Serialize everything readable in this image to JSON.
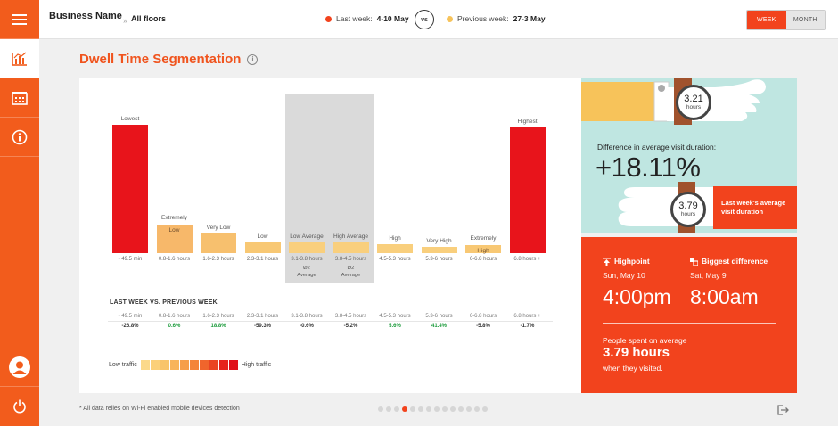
{
  "header": {
    "business_name": "Business Name",
    "chevron": "»",
    "location": "All floors",
    "last_week_label": "Last week:",
    "last_week_range": "4-10 May",
    "last_week_color": "#f2431d",
    "vs_label": "vs",
    "previous_week_label": "Previous week:",
    "previous_week_range": "27-3 May",
    "previous_week_color": "#f7c35a",
    "period_toggle": {
      "week": "WEEK",
      "month": "MONTH",
      "selected": "WEEK"
    }
  },
  "sidebar": {
    "items": [
      {
        "icon": "menu-icon"
      },
      {
        "icon": "chart-icon",
        "active": true
      },
      {
        "icon": "building-icon"
      },
      {
        "icon": "info-icon"
      },
      {
        "icon": "user-icon"
      },
      {
        "icon": "power-icon"
      }
    ]
  },
  "page": {
    "title": "Dwell Time Segmentation",
    "title_info_glyph": "i"
  },
  "chart_data": {
    "type": "bar",
    "categories": [
      "- 49.5 min",
      "0.8-1.6 hours",
      "1.6-2.3 hours",
      "2.3-3.1 hours",
      "3.1-3.8 hours",
      "3.8-4.5 hours",
      "4.5-5.3 hours",
      "5.3-6 hours",
      "6-6.8 hours",
      "6.8 hours +"
    ],
    "labels": [
      "Lowest",
      "Extremely Low",
      "Very Low",
      "Low",
      "Low Average",
      "High Average",
      "High",
      "Very High",
      "Extremely High",
      "Highest"
    ],
    "values": [
      100,
      22,
      15,
      8,
      8,
      8,
      7,
      5,
      6,
      98
    ],
    "colors": [
      "#e8141b",
      "#f7b86a",
      "#f7c06e",
      "#f8c874",
      "#f9cf7d",
      "#f9cf7d",
      "#f9cf7d",
      "#f9cf7d",
      "#f8c874",
      "#e8141b"
    ],
    "average_band": {
      "label": "Average",
      "prefix": "Ø2"
    },
    "ylim": [
      0,
      100
    ]
  },
  "comparison": {
    "title": "LAST WEEK VS. PREVIOUS WEEK",
    "ranges": [
      "- 49.5 min",
      "0.8-1.6 hours",
      "1.6-2.3 hours",
      "2.3-3.1 hours",
      "3.1-3.8 hours",
      "3.8-4.5 hours",
      "4.5-5.3 hours",
      "5.3-6 hours",
      "6-6.8 hours",
      "6.8 hours +"
    ],
    "values": [
      "-26.8%",
      "0.6%",
      "18.8%",
      "-59.3%",
      "-0.6%",
      "-5.2%",
      "5.6%",
      "41.4%",
      "-5.8%",
      "-1.7%"
    ],
    "positive_color": "#1a9a3a",
    "negative_color": "#333333"
  },
  "traffic_legend": {
    "low_label": "Low traffic",
    "high_label": "High traffic",
    "swatches": [
      "#fbd98a",
      "#fbd07a",
      "#f9c46a",
      "#f8b45a",
      "#f69e48",
      "#f48438",
      "#f0652c",
      "#ea4422",
      "#e6231c",
      "#e0101a"
    ]
  },
  "diff_panel": {
    "label": "Difference in average visit duration:",
    "value": "+18.11%",
    "watch_previous_value": "3.21",
    "watch_previous_unit": "hours",
    "watch_last_value": "3.79",
    "watch_last_unit": "hours",
    "last_week_avg_line1": "Last week's average",
    "last_week_avg_line2": "visit duration"
  },
  "highlights": {
    "highpoint_label": "Highpoint",
    "highpoint_day": "Sun, May 10",
    "highpoint_time": "4:00pm",
    "biggest_label": "Biggest difference",
    "biggest_day": "Sat, May 9",
    "biggest_time": "8:00am",
    "people_line1": "People spent on average",
    "people_value": "3.79 hours",
    "people_line3": "when they visited."
  },
  "footer": {
    "note": "* All data relies on Wi-Fi enabled mobile devices detection",
    "pages_total": 14,
    "page_active": 4
  }
}
